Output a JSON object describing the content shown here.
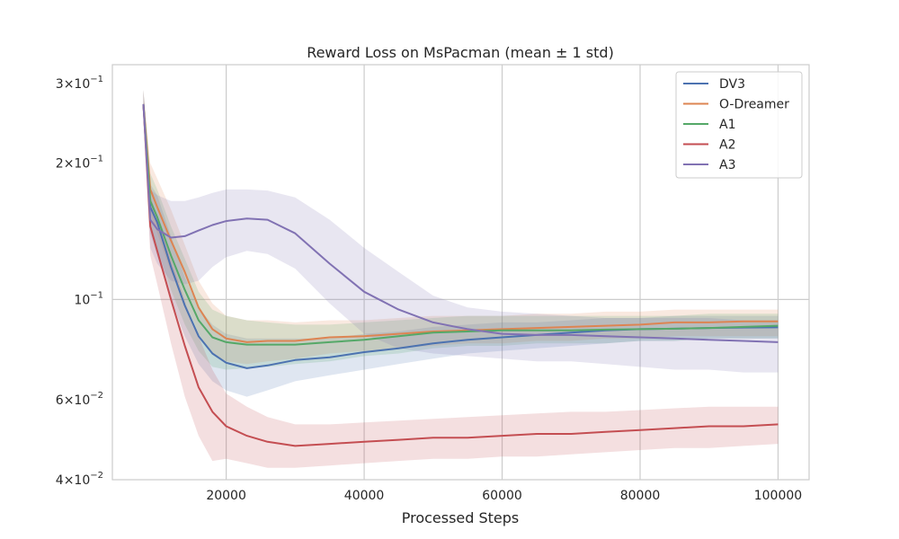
{
  "chart_data": {
    "type": "line",
    "title": "Reward Loss on MsPacman (mean ± 1 std)",
    "xlabel": "Processed Steps",
    "ylabel": "",
    "xlim": [
      3500,
      104500
    ],
    "ylim": [
      0.04,
      0.3
    ],
    "yscale": "log",
    "grid": true,
    "legend_position": "top-right",
    "x_ticks": [
      {
        "value": 20000,
        "label": "20000"
      },
      {
        "value": 40000,
        "label": "40000"
      },
      {
        "value": 60000,
        "label": "60000"
      },
      {
        "value": 80000,
        "label": "80000"
      },
      {
        "value": 100000,
        "label": "100000"
      }
    ],
    "y_ticks": [
      {
        "value": 0.3,
        "mant": "3",
        "exp": "−1"
      },
      {
        "value": 0.2,
        "mant": "2",
        "exp": "−1"
      },
      {
        "value": 0.1,
        "mant": "10",
        "exp": "−1"
      },
      {
        "value": 0.06,
        "mant": "6",
        "exp": "−2"
      },
      {
        "value": 0.04,
        "mant": "4",
        "exp": "−2"
      }
    ],
    "x": [
      8000,
      9000,
      10000,
      12000,
      14000,
      16000,
      18000,
      20000,
      23000,
      26000,
      30000,
      35000,
      40000,
      45000,
      50000,
      55000,
      60000,
      65000,
      70000,
      75000,
      80000,
      85000,
      90000,
      95000,
      100000
    ],
    "series": [
      {
        "name": "DV3",
        "color": "#4c72b0",
        "values": [
          0.27,
          0.16,
          0.148,
          0.118,
          0.097,
          0.083,
          0.076,
          0.0725,
          0.0705,
          0.0715,
          0.0735,
          0.0745,
          0.0765,
          0.078,
          0.08,
          0.0815,
          0.0825,
          0.0835,
          0.0845,
          0.0855,
          0.086,
          0.0862,
          0.0865,
          0.0867,
          0.0868
        ],
        "lower": [
          0.25,
          0.14,
          0.125,
          0.1,
          0.083,
          0.072,
          0.066,
          0.063,
          0.061,
          0.063,
          0.066,
          0.068,
          0.07,
          0.072,
          0.074,
          0.076,
          0.077,
          0.078,
          0.079,
          0.08,
          0.081,
          0.081,
          0.082,
          0.082,
          0.082
        ],
        "upper": [
          0.29,
          0.18,
          0.17,
          0.138,
          0.112,
          0.096,
          0.088,
          0.084,
          0.082,
          0.082,
          0.082,
          0.082,
          0.084,
          0.085,
          0.087,
          0.088,
          0.089,
          0.089,
          0.09,
          0.091,
          0.091,
          0.092,
          0.092,
          0.092,
          0.092
        ]
      },
      {
        "name": "O-Dreamer",
        "color": "#dd8452",
        "values": [
          0.27,
          0.175,
          0.16,
          0.135,
          0.115,
          0.096,
          0.086,
          0.082,
          0.0805,
          0.081,
          0.081,
          0.0825,
          0.083,
          0.084,
          0.085,
          0.0855,
          0.086,
          0.0865,
          0.087,
          0.0875,
          0.088,
          0.089,
          0.089,
          0.0895,
          0.0895
        ],
        "lower": [
          0.25,
          0.155,
          0.14,
          0.115,
          0.1,
          0.084,
          0.076,
          0.073,
          0.072,
          0.073,
          0.074,
          0.076,
          0.077,
          0.078,
          0.079,
          0.08,
          0.08,
          0.081,
          0.081,
          0.082,
          0.082,
          0.083,
          0.083,
          0.083,
          0.083
        ],
        "upper": [
          0.29,
          0.2,
          0.185,
          0.158,
          0.132,
          0.11,
          0.098,
          0.092,
          0.09,
          0.09,
          0.089,
          0.09,
          0.09,
          0.091,
          0.092,
          0.092,
          0.092,
          0.093,
          0.093,
          0.094,
          0.094,
          0.095,
          0.095,
          0.095,
          0.095
        ]
      },
      {
        "name": "A1",
        "color": "#55a868",
        "values": [
          0.27,
          0.165,
          0.152,
          0.125,
          0.105,
          0.09,
          0.0825,
          0.0805,
          0.0795,
          0.0795,
          0.0795,
          0.0805,
          0.0815,
          0.083,
          0.0845,
          0.085,
          0.0855,
          0.0855,
          0.0855,
          0.0858,
          0.086,
          0.0862,
          0.0865,
          0.087,
          0.0875
        ],
        "lower": [
          0.25,
          0.145,
          0.13,
          0.105,
          0.088,
          0.077,
          0.071,
          0.07,
          0.0705,
          0.071,
          0.072,
          0.073,
          0.075,
          0.076,
          0.078,
          0.079,
          0.079,
          0.08,
          0.08,
          0.08,
          0.081,
          0.081,
          0.082,
          0.082,
          0.082
        ],
        "upper": [
          0.29,
          0.19,
          0.175,
          0.145,
          0.123,
          0.104,
          0.095,
          0.092,
          0.09,
          0.089,
          0.088,
          0.088,
          0.089,
          0.09,
          0.091,
          0.092,
          0.092,
          0.092,
          0.092,
          0.092,
          0.092,
          0.092,
          0.093,
          0.093,
          0.093
        ]
      },
      {
        "name": "A2",
        "color": "#c44e52",
        "values": [
          0.27,
          0.145,
          0.128,
          0.1,
          0.079,
          0.064,
          0.0565,
          0.0525,
          0.05,
          0.0485,
          0.0475,
          0.048,
          0.0485,
          0.049,
          0.0495,
          0.0495,
          0.05,
          0.0505,
          0.0505,
          0.051,
          0.0515,
          0.052,
          0.0525,
          0.0525,
          0.053
        ],
        "lower": [
          0.25,
          0.125,
          0.108,
          0.08,
          0.061,
          0.05,
          0.044,
          0.0445,
          0.0435,
          0.0425,
          0.0425,
          0.043,
          0.0435,
          0.044,
          0.0445,
          0.0445,
          0.045,
          0.045,
          0.0455,
          0.046,
          0.0465,
          0.047,
          0.047,
          0.0475,
          0.048
        ],
        "upper": [
          0.29,
          0.17,
          0.152,
          0.122,
          0.1,
          0.083,
          0.07,
          0.062,
          0.058,
          0.055,
          0.053,
          0.053,
          0.0535,
          0.054,
          0.0545,
          0.055,
          0.0555,
          0.056,
          0.0565,
          0.0565,
          0.057,
          0.0575,
          0.058,
          0.058,
          0.058
        ]
      },
      {
        "name": "A3",
        "color": "#8172b3",
        "values": [
          0.27,
          0.15,
          0.143,
          0.137,
          0.138,
          0.142,
          0.146,
          0.149,
          0.151,
          0.15,
          0.14,
          0.12,
          0.104,
          0.095,
          0.089,
          0.086,
          0.084,
          0.0835,
          0.0835,
          0.083,
          0.0825,
          0.082,
          0.0815,
          0.081,
          0.0805
        ],
        "lower": [
          0.25,
          0.13,
          0.12,
          0.11,
          0.108,
          0.11,
          0.118,
          0.124,
          0.128,
          0.126,
          0.117,
          0.098,
          0.084,
          0.078,
          0.076,
          0.075,
          0.074,
          0.073,
          0.073,
          0.072,
          0.071,
          0.07,
          0.07,
          0.069,
          0.069
        ],
        "upper": [
          0.29,
          0.175,
          0.17,
          0.165,
          0.165,
          0.168,
          0.172,
          0.175,
          0.175,
          0.174,
          0.168,
          0.15,
          0.13,
          0.115,
          0.102,
          0.096,
          0.094,
          0.093,
          0.092,
          0.091,
          0.091,
          0.091,
          0.091,
          0.09,
          0.09
        ]
      }
    ]
  }
}
